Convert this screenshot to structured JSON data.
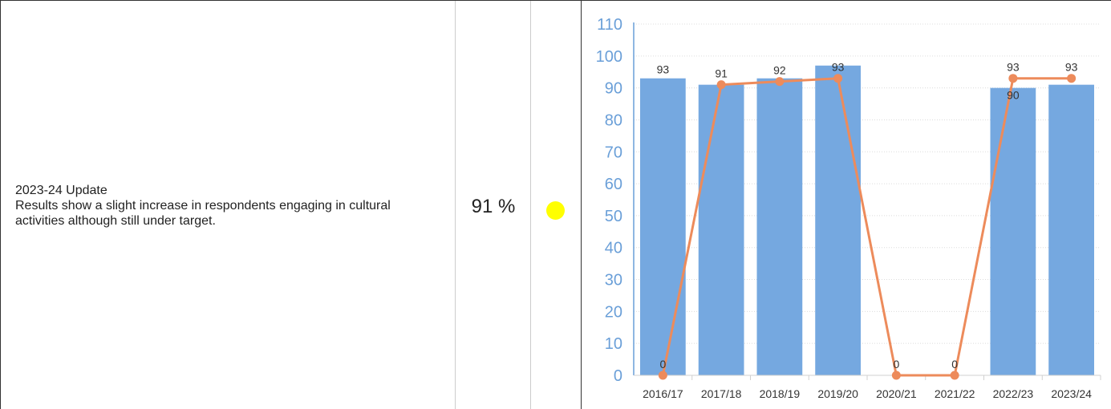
{
  "measure": {
    "commentary_title": "2023-24 Update",
    "commentary_body": "Results show a slight increase in respondents engaging in cultural activities although still under target.",
    "current_value": "91 %",
    "status_color": "#ffff00"
  },
  "chart_data": {
    "type": "bar",
    "categories": [
      "2016/17",
      "2017/18",
      "2018/19",
      "2019/20",
      "2020/21",
      "2021/22",
      "2022/23",
      "2023/24"
    ],
    "series": [
      {
        "type": "bar",
        "values": [
          93,
          91,
          93,
          97,
          null,
          null,
          90,
          91
        ],
        "labels": [
          "93",
          "",
          "",
          "",
          "",
          "",
          "90",
          ""
        ],
        "color": "#75a8e0"
      },
      {
        "type": "line",
        "values": [
          0,
          91,
          92,
          93,
          0,
          0,
          93,
          93
        ],
        "labels": [
          "0",
          "91",
          "92",
          "93",
          "0",
          "0",
          "93",
          "93"
        ],
        "color": "#ed8b5b"
      }
    ],
    "y_ticks": [
      "0",
      "10",
      "20",
      "30",
      "40",
      "50",
      "60",
      "70",
      "80",
      "90",
      "100",
      "110"
    ],
    "ylim": [
      0,
      110
    ],
    "grid": true
  }
}
